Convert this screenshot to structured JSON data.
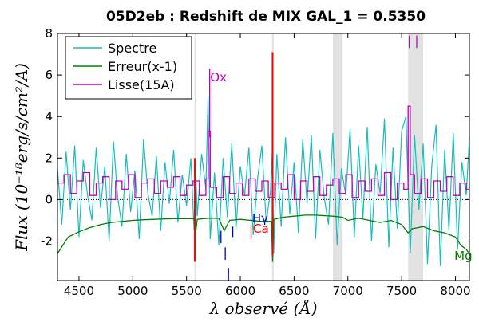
{
  "chart_data": {
    "type": "line",
    "title": "05D2eb : Redshift de MIX GAL_1 = 0.5350",
    "xlabel": "λ observé (Å)",
    "ylabel": "Flux (10⁻¹⁸erg/s/cm²/A)",
    "xlim": [
      4300,
      8130
    ],
    "ylim": [
      -3.9,
      8.0
    ],
    "xticks": [
      4500,
      5000,
      5500,
      6000,
      6500,
      7000,
      7500,
      8000
    ],
    "yticks": [
      -2,
      0,
      2,
      4,
      6,
      8
    ],
    "grid": false,
    "legend_position": "top-left",
    "zero_line": 0,
    "shaded_bands": [
      {
        "x": [
          5575,
          5590
        ],
        "color": "#e2e2e2"
      },
      {
        "x": [
          6295,
          6310
        ],
        "color": "#e2e2e2"
      },
      {
        "x": [
          6860,
          6950
        ],
        "color": "#e2e2e2"
      },
      {
        "x": [
          7560,
          7700
        ],
        "color": "#e2e2e2"
      }
    ],
    "series": [
      {
        "name": "Spectre",
        "color": "#17bdbd",
        "x": [
          4300,
          4340,
          4380,
          4420,
          4460,
          4500,
          4540,
          4580,
          4620,
          4660,
          4700,
          4740,
          4780,
          4820,
          4860,
          4900,
          4940,
          4980,
          5020,
          5060,
          5100,
          5140,
          5180,
          5220,
          5260,
          5300,
          5340,
          5380,
          5420,
          5460,
          5500,
          5540,
          5570,
          5582,
          5600,
          5640,
          5680,
          5700,
          5720,
          5760,
          5800,
          5840,
          5880,
          5920,
          5960,
          6000,
          6040,
          6080,
          6120,
          6160,
          6200,
          6240,
          6280,
          6300,
          6310,
          6340,
          6380,
          6420,
          6460,
          6500,
          6540,
          6580,
          6620,
          6660,
          6700,
          6740,
          6780,
          6820,
          6860,
          6900,
          6940,
          6980,
          7020,
          7060,
          7100,
          7140,
          7180,
          7220,
          7260,
          7300,
          7340,
          7380,
          7420,
          7460,
          7500,
          7540,
          7580,
          7620,
          7660,
          7700,
          7740,
          7780,
          7820,
          7860,
          7900,
          7940,
          7980,
          8020,
          8060,
          8100,
          8130
        ],
        "y": [
          1.5,
          -1.2,
          2.3,
          -0.5,
          2.6,
          -1.8,
          1.9,
          0.2,
          -1.0,
          2.5,
          -0.4,
          1.6,
          -2.0,
          2.8,
          0.1,
          -1.3,
          2.2,
          -0.6,
          1.4,
          -1.9,
          2.9,
          0.3,
          -0.8,
          2.1,
          -1.5,
          1.8,
          -0.2,
          2.4,
          -1.1,
          1.2,
          -0.3,
          2.0,
          -1.5,
          1.9,
          -0.8,
          2.2,
          0.5,
          5.0,
          -1.9,
          1.3,
          -2.2,
          2.0,
          -0.9,
          2.7,
          -1.4,
          1.6,
          0.2,
          2.5,
          -1.7,
          1.0,
          2.6,
          -1.1,
          0.4,
          2.6,
          -2.6,
          2.2,
          -1.3,
          3.0,
          -0.7,
          1.8,
          -1.6,
          2.9,
          -0.2,
          3.1,
          -1.9,
          2.4,
          0.1,
          -1.2,
          3.2,
          -2.2,
          1.5,
          0.2,
          3.4,
          -1.8,
          2.6,
          -0.9,
          3.5,
          -2.0,
          1.7,
          0.3,
          3.9,
          -2.3,
          2.5,
          -1.4,
          3.3,
          4.0,
          -2.6,
          3.1,
          -0.5,
          2.7,
          -3.1,
          1.6,
          3.6,
          -3.2,
          2.4,
          -1.5,
          3.2,
          -2.4,
          1.8,
          0.2,
          3.0
        ]
      },
      {
        "name": "Erreur(x-1)",
        "color": "#008000",
        "x": [
          4300,
          4400,
          4500,
          4600,
          4700,
          4800,
          4900,
          5000,
          5100,
          5200,
          5300,
          5400,
          5500,
          5570,
          5585,
          5600,
          5700,
          5800,
          5850,
          5870,
          5900,
          6000,
          6100,
          6200,
          6290,
          6300,
          6310,
          6400,
          6500,
          6600,
          6700,
          6800,
          6860,
          6950,
          7000,
          7100,
          7200,
          7300,
          7400,
          7500,
          7560,
          7600,
          7700,
          7800,
          7900,
          8000,
          8050,
          8100,
          8130
        ],
        "y": [
          -2.6,
          -1.8,
          -1.55,
          -1.35,
          -1.2,
          -1.1,
          -1.05,
          -1.0,
          -0.97,
          -0.95,
          -0.93,
          -0.92,
          -0.92,
          -0.92,
          -1.6,
          -0.95,
          -0.9,
          -0.9,
          -1.5,
          -1.3,
          -1.0,
          -0.95,
          -1.0,
          -1.05,
          -1.05,
          -3.0,
          -0.95,
          -0.85,
          -0.8,
          -0.75,
          -0.75,
          -0.78,
          -0.8,
          -0.85,
          -1.0,
          -0.9,
          -1.0,
          -1.1,
          -1.0,
          -1.2,
          -1.6,
          -1.4,
          -1.3,
          -1.5,
          -1.6,
          -1.8,
          -2.2,
          -2.4,
          -2.6
        ]
      },
      {
        "name": "Lisse(15A)",
        "color": "#bf00bf",
        "x": [
          4300,
          4360,
          4420,
          4480,
          4540,
          4600,
          4660,
          4720,
          4780,
          4840,
          4900,
          4960,
          5020,
          5080,
          5140,
          5200,
          5260,
          5320,
          5380,
          5440,
          5500,
          5560,
          5620,
          5680,
          5700,
          5720,
          5780,
          5840,
          5900,
          5960,
          6020,
          6080,
          6140,
          6200,
          6260,
          6320,
          6380,
          6440,
          6500,
          6560,
          6620,
          6680,
          6740,
          6800,
          6860,
          6920,
          6980,
          7040,
          7100,
          7160,
          7220,
          7280,
          7340,
          7400,
          7460,
          7520,
          7560,
          7580,
          7620,
          7680,
          7740,
          7800,
          7860,
          7920,
          7980,
          8040,
          8100,
          8130
        ],
        "y": [
          0.8,
          1.2,
          0.3,
          0.9,
          1.3,
          0.2,
          0.8,
          1.1,
          0.0,
          0.9,
          0.5,
          1.2,
          0.1,
          0.8,
          1.0,
          0.3,
          0.9,
          0.6,
          1.1,
          0.2,
          0.7,
          0.9,
          0.2,
          1.0,
          3.3,
          0.6,
          0.1,
          1.1,
          0.3,
          0.8,
          0.2,
          1.0,
          0.4,
          0.9,
          0.1,
          0.8,
          0.5,
          1.2,
          0.0,
          0.9,
          0.4,
          1.1,
          0.2,
          0.7,
          1.0,
          0.3,
          1.2,
          0.1,
          0.9,
          0.4,
          1.0,
          0.2,
          1.3,
          0.0,
          0.8,
          0.5,
          4.5,
          1.2,
          0.3,
          1.0,
          0.1,
          0.9,
          0.4,
          1.1,
          0.2,
          0.8,
          0.5,
          0.7
        ]
      }
    ],
    "sky_lines": [
      {
        "x": 5577,
        "y0": -3.0,
        "y1": 2.0,
        "color": "#ff0000"
      },
      {
        "x": 6300,
        "y0": -2.7,
        "y1": 7.1,
        "color": "#ff0000"
      }
    ],
    "line_annotations": [
      {
        "label": "Ox",
        "x": 5720,
        "y": 5.7,
        "color": "#bf00bf"
      },
      {
        "label": "Hγ",
        "x": 6110,
        "y": -1.1,
        "color": "#0000cc"
      },
      {
        "label": "Ca",
        "x": 6120,
        "y": -1.6,
        "color": "#ff0000"
      },
      {
        "label": "Mg",
        "x": 7990,
        "y": -2.9,
        "color": "#008000"
      }
    ],
    "line_marks": [
      {
        "x": 5715,
        "y0": 3.0,
        "y1": 6.3,
        "color": "#bf00bf"
      },
      {
        "x": 7570,
        "y0": 7.3,
        "y1": 7.9,
        "color": "#bf00bf"
      },
      {
        "x": 7640,
        "y0": 7.3,
        "y1": 7.9,
        "color": "#bf00bf"
      },
      {
        "x": 5820,
        "y0": -1.5,
        "y1": -2.1,
        "color": "#0000cc"
      },
      {
        "x": 5860,
        "y0": -2.3,
        "y1": -2.9,
        "color": "#0000cc"
      },
      {
        "x": 5890,
        "y0": -3.3,
        "y1": -3.9,
        "color": "#0000cc"
      },
      {
        "x": 5930,
        "y0": -1.3,
        "y1": -1.8,
        "color": "#0000cc"
      },
      {
        "x": 6100,
        "y0": -1.2,
        "y1": -1.9,
        "color": "#ff0000"
      }
    ]
  }
}
